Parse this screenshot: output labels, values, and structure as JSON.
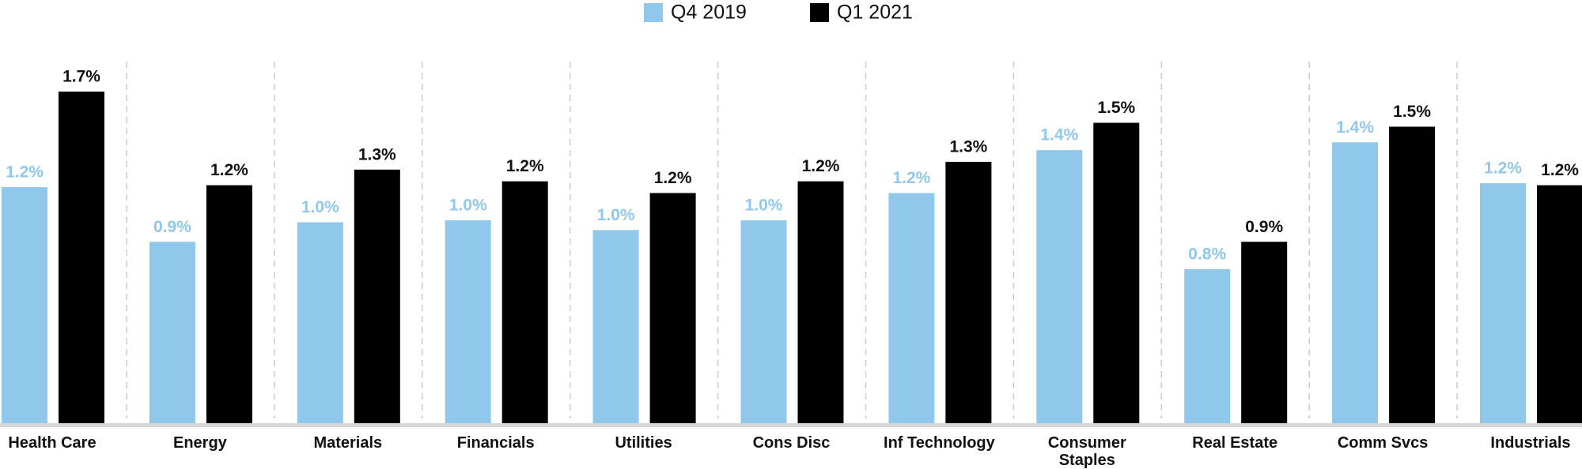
{
  "chart_data": {
    "type": "bar",
    "categories": [
      "Health Care",
      "Energy",
      "Materials",
      "Financials",
      "Utilities",
      "Cons Disc",
      "Inf Technology",
      "Consumer Staples",
      "Real Estate",
      "Comm Svcs",
      "Industrials"
    ],
    "series": [
      {
        "name": "Q4 2019",
        "color": "#8fc8ea",
        "values": [
          1.21,
          0.93,
          1.03,
          1.04,
          0.99,
          1.04,
          1.18,
          1.4,
          0.79,
          1.44,
          1.23
        ],
        "value_labels": [
          "1.2%",
          "0.9%",
          "1.0%",
          "1.0%",
          "1.0%",
          "1.0%",
          "1.2%",
          "1.4%",
          "0.8%",
          "1.4%",
          "1.2%"
        ]
      },
      {
        "name": "Q1 2021",
        "color": "#000000",
        "values": [
          1.7,
          1.22,
          1.3,
          1.24,
          1.18,
          1.24,
          1.34,
          1.54,
          0.93,
          1.52,
          1.22
        ],
        "value_labels": [
          "1.7%",
          "1.2%",
          "1.3%",
          "1.2%",
          "1.2%",
          "1.2%",
          "1.3%",
          "1.5%",
          "0.9%",
          "1.5%",
          "1.2%"
        ]
      }
    ],
    "ylim": [
      0,
      1.7
    ]
  }
}
